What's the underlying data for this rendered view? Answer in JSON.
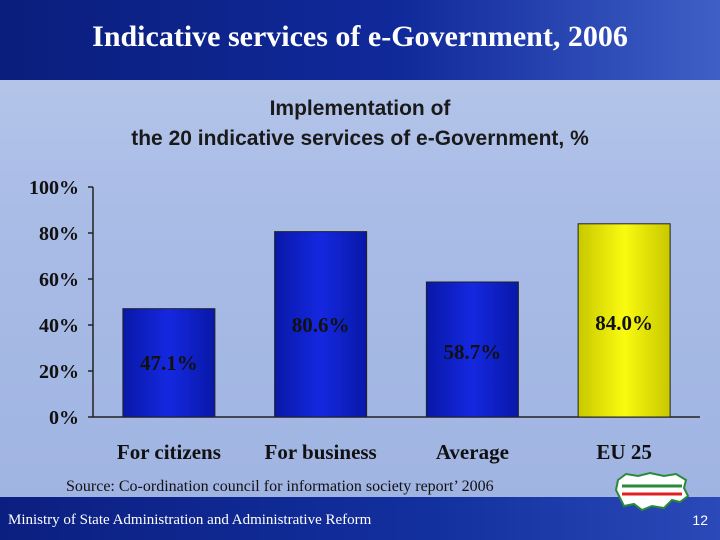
{
  "slide": {
    "title": "Indicative services of e-Government, 2006",
    "source": "Source: Co-ordination council for information society report’ 2006",
    "footer": "Ministry of State Administration and Administrative Reform",
    "page_number": "12"
  },
  "colors": {
    "bar_blue": "#0a16c8",
    "bar_yellow": "#f0f000",
    "title_bar": "#10299a",
    "background": "#a9bce6"
  },
  "icons": [
    "bulgaria-map-icon"
  ],
  "chart_data": {
    "type": "bar",
    "title": [
      "Implementation of",
      "the 20 indicative services of e-Government, %"
    ],
    "categories": [
      "For citizens",
      "For business",
      "Average",
      "EU 25"
    ],
    "values": [
      47.1,
      80.6,
      58.7,
      84.0
    ],
    "data_labels": [
      "47.1%",
      "80.6%",
      "58.7%",
      "84.0%"
    ],
    "bar_colors": [
      "#0a16c8",
      "#0a16c8",
      "#0a16c8",
      "#f0f000"
    ],
    "yticks": [
      "0%",
      "20%",
      "40%",
      "60%",
      "80%",
      "100%"
    ],
    "ylim": [
      0,
      100
    ],
    "grid": false,
    "legend": "none"
  }
}
